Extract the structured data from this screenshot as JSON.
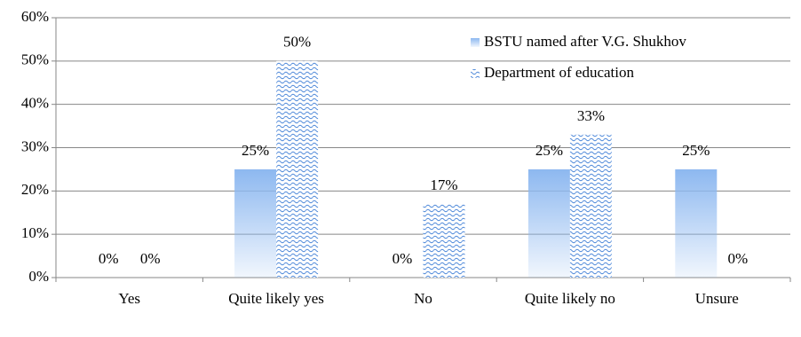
{
  "chart_data": {
    "type": "bar",
    "categories": [
      "Yes",
      "Quite likely yes",
      "No",
      "Quite likely no",
      "Unsure"
    ],
    "series": [
      {
        "name": "BSTU named after V.G. Shukhov",
        "color": "#8db8f0",
        "fill": "gradient",
        "values": [
          0,
          25,
          0,
          25,
          25
        ],
        "value_labels": [
          "0%",
          "25%",
          "0%",
          "25%",
          "25%"
        ]
      },
      {
        "name": "Department of education",
        "color": "#4a86d8",
        "fill": "wave",
        "values": [
          0,
          50,
          17,
          33,
          0
        ],
        "value_labels": [
          "0%",
          "50%",
          "17%",
          "33%",
          "0%"
        ]
      }
    ],
    "ylim": [
      0,
      60
    ],
    "yticks": [
      {
        "value": 0,
        "label": "0%"
      },
      {
        "value": 10,
        "label": "10%"
      },
      {
        "value": 20,
        "label": "20%"
      },
      {
        "value": 30,
        "label": "30%"
      },
      {
        "value": 40,
        "label": "40%"
      },
      {
        "value": 50,
        "label": "50%"
      },
      {
        "value": 60,
        "label": "60%"
      }
    ],
    "grid": true,
    "legend": "upper right"
  }
}
